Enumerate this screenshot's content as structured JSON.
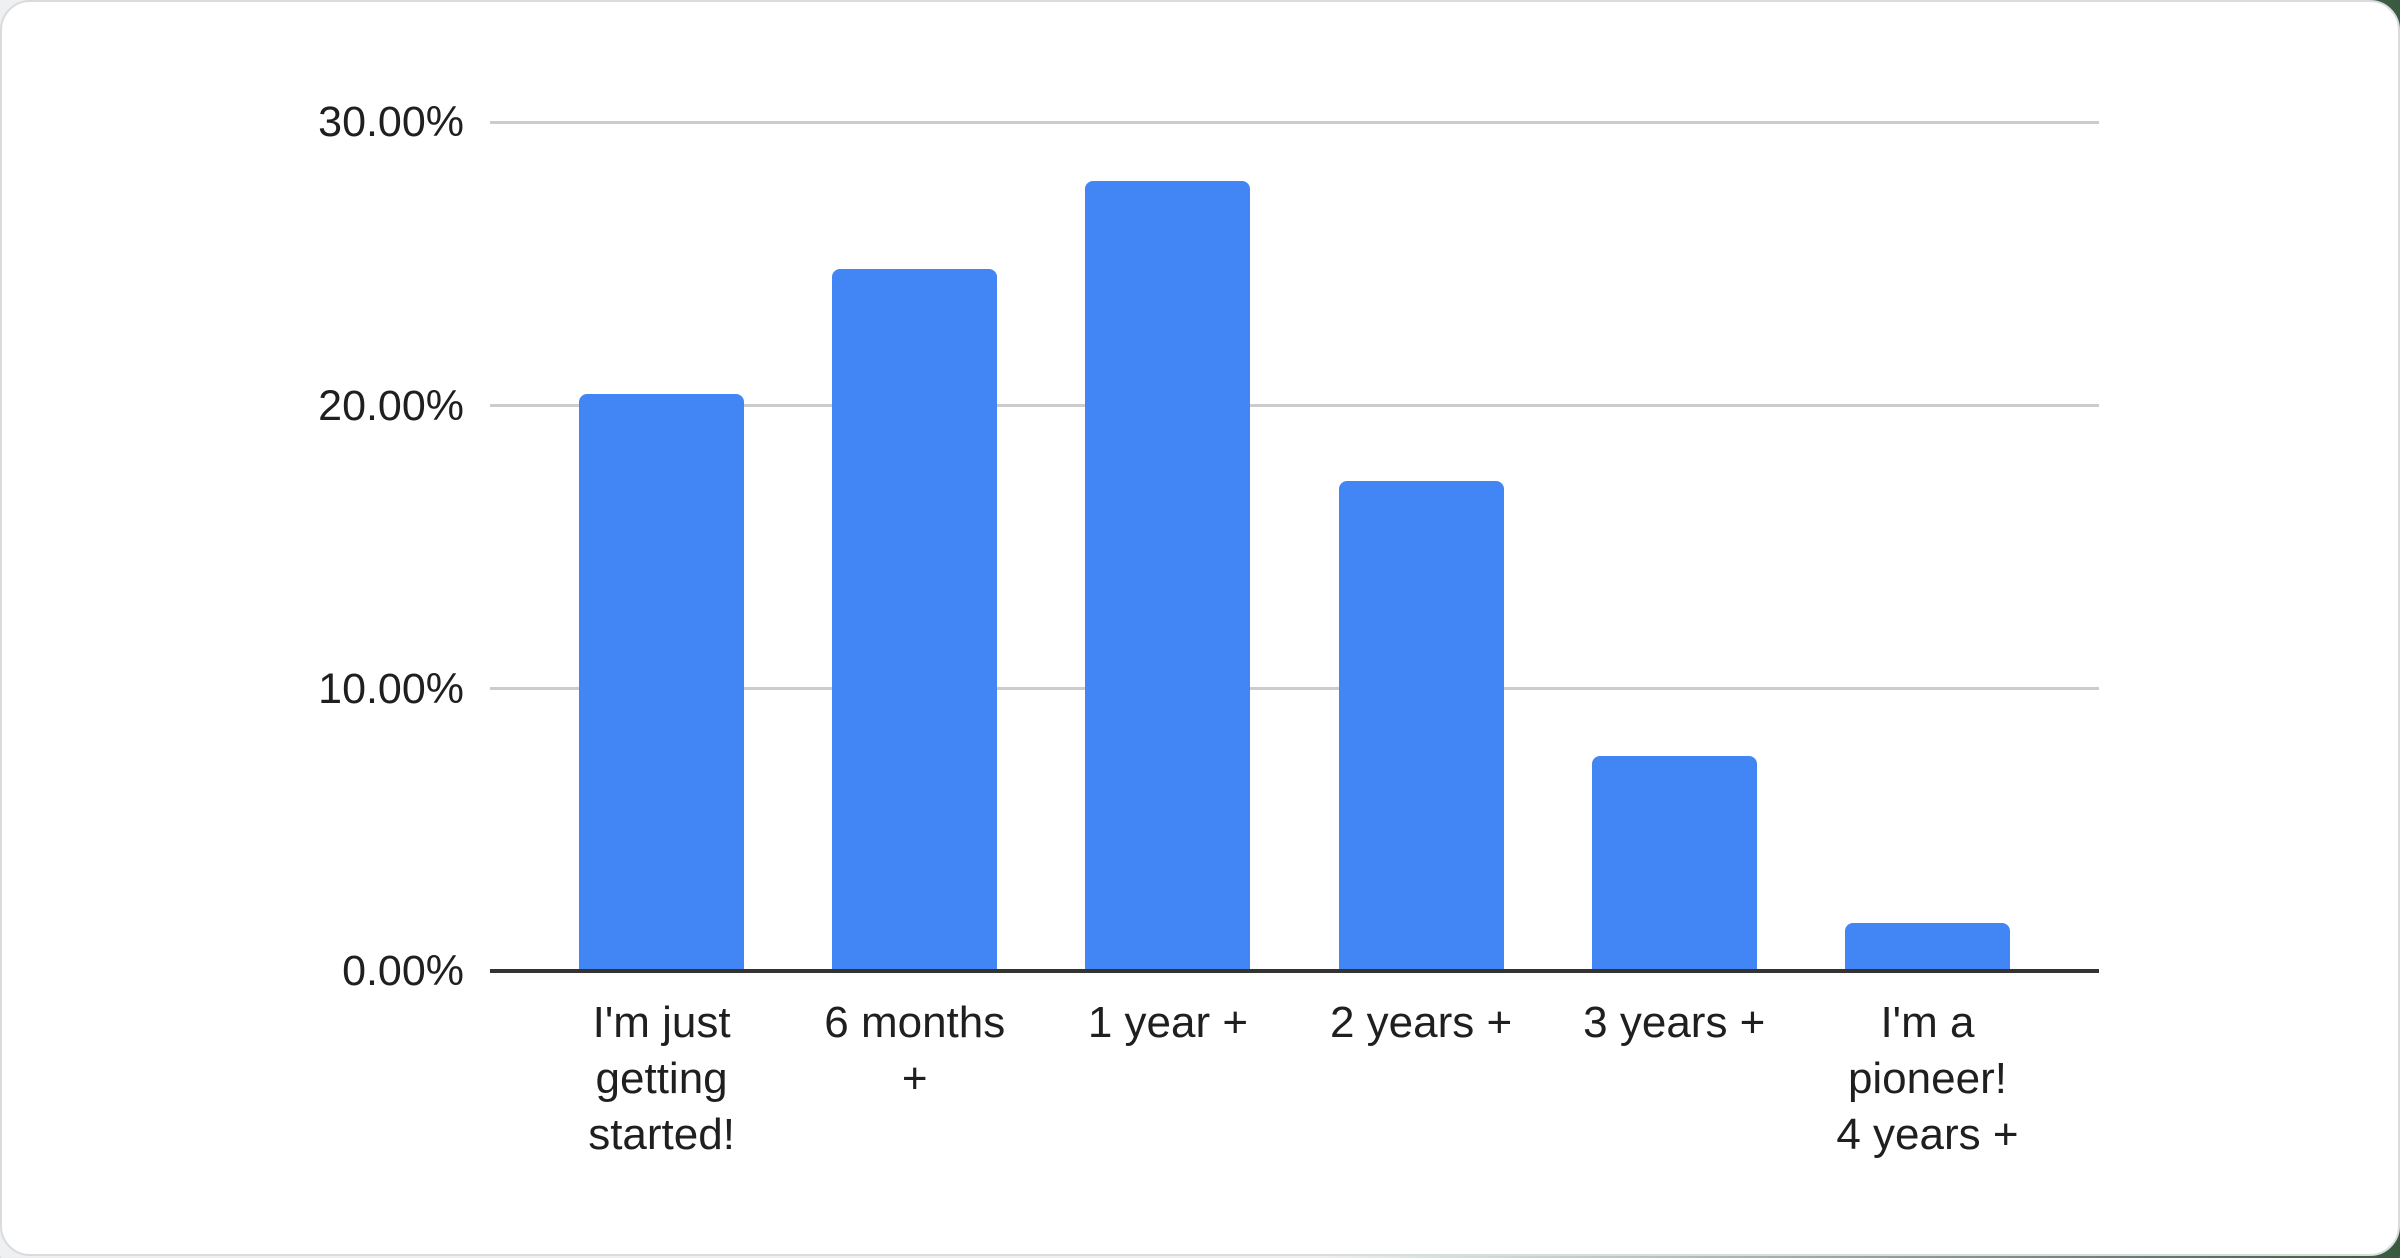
{
  "colors": {
    "bar": "#4285F4",
    "gridline": "#cccccc",
    "axis_line": "#333333",
    "label_text": "#1f1f1f",
    "card_background": "#ffffff",
    "card_border": "#d9dcdf",
    "backdrop_green": "#3a5a40"
  },
  "chart_data": {
    "type": "bar",
    "categories": [
      "I'm just getting started!",
      "6 months +",
      "1 year +",
      "2 years +",
      "3 years +",
      "I'm a pioneer! 4 years +"
    ],
    "tick_labels": [
      "I'm just\ngetting\nstarted!",
      "6 months\n+",
      "1 year +",
      "2 years +",
      "3 years +",
      "I'm a\npioneer!\n4 years +"
    ],
    "values": [
      20.4,
      24.8,
      27.9,
      17.3,
      7.6,
      1.7
    ],
    "unit": "%",
    "title": "",
    "xlabel": "",
    "ylabel": "",
    "y_ticks": [
      "30.00%",
      "20.00%",
      "10.00%",
      "0.00%"
    ],
    "ylim": [
      0,
      30
    ],
    "grid": true,
    "legend": "none",
    "bar_color": "#4285F4"
  }
}
